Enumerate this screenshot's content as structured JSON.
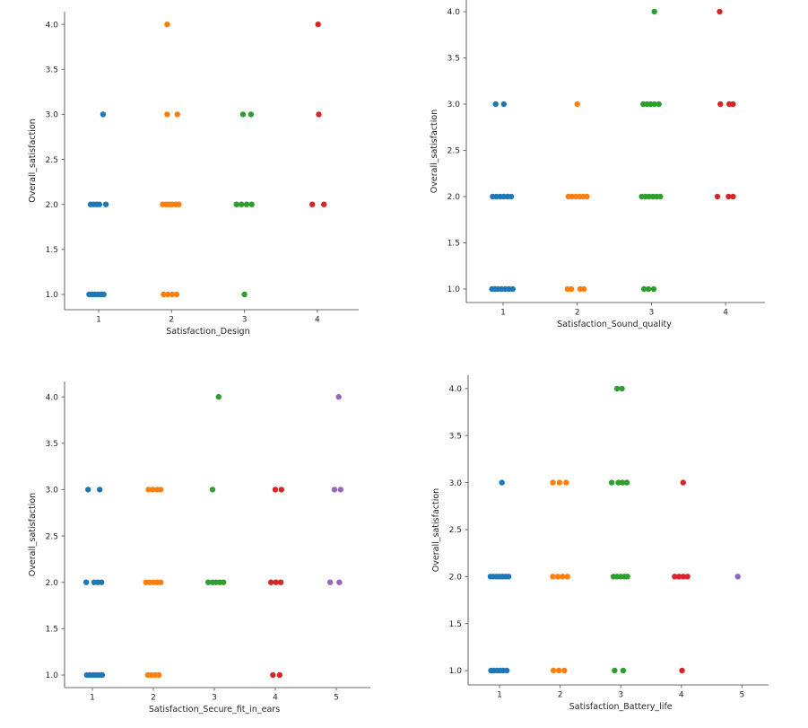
{
  "figure": {
    "background": "#ffffff",
    "axis_color": "#6b6b6b",
    "text_color": "#262626",
    "palette": [
      "#1f77b4",
      "#ff7f0e",
      "#2ca02c",
      "#d62728",
      "#9467bd"
    ]
  },
  "chart_data": [
    {
      "type": "scatter",
      "position": "top-left",
      "title": "",
      "xlabel": "Satisfaction_Design",
      "ylabel": "Overall_satisfaction",
      "x_ticks": [
        "1",
        "2",
        "3",
        "4"
      ],
      "y_ticks": [
        "1.0",
        "1.5",
        "2.0",
        "2.5",
        "3.0",
        "3.5",
        "4.0"
      ],
      "xlim": [
        0.53,
        4.57
      ],
      "ylim": [
        0.83,
        4.14
      ],
      "grid": false,
      "legend": "none",
      "series": [
        {
          "name": "1",
          "color": "#1f77b4",
          "points": [
            [
              1.06,
              3
            ],
            [
              0.89,
              2
            ],
            [
              0.93,
              2
            ],
            [
              0.97,
              2
            ],
            [
              1.01,
              2
            ],
            [
              1.1,
              2
            ],
            [
              0.87,
              1
            ],
            [
              0.91,
              1
            ],
            [
              0.95,
              1
            ],
            [
              0.99,
              1
            ],
            [
              1.03,
              1
            ],
            [
              1.07,
              1
            ]
          ]
        },
        {
          "name": "2",
          "color": "#ff7f0e",
          "points": [
            [
              1.94,
              4
            ],
            [
              1.94,
              3
            ],
            [
              2.08,
              3
            ],
            [
              1.88,
              2
            ],
            [
              1.93,
              2
            ],
            [
              1.97,
              2
            ],
            [
              2.01,
              2
            ],
            [
              2.06,
              2
            ],
            [
              2.1,
              2
            ],
            [
              1.89,
              1
            ],
            [
              1.95,
              1
            ],
            [
              2.01,
              1
            ],
            [
              2.07,
              1
            ]
          ]
        },
        {
          "name": "3",
          "color": "#2ca02c",
          "points": [
            [
              2.98,
              3
            ],
            [
              3.09,
              3
            ],
            [
              2.89,
              2
            ],
            [
              2.96,
              2
            ],
            [
              3.03,
              2
            ],
            [
              3.1,
              2
            ],
            [
              3.0,
              1
            ]
          ]
        },
        {
          "name": "4",
          "color": "#d62728",
          "points": [
            [
              4.01,
              4
            ],
            [
              4.02,
              3
            ],
            [
              3.93,
              2
            ],
            [
              4.09,
              2
            ]
          ]
        }
      ]
    },
    {
      "type": "scatter",
      "position": "top-right",
      "title": "",
      "xlabel": "Satisfaction_Sound_quality",
      "ylabel": "Overall_satisfaction",
      "x_ticks": [
        "1",
        "2",
        "3",
        "4"
      ],
      "y_ticks": [
        "1.0",
        "1.5",
        "2.0",
        "2.5",
        "3.0",
        "3.5",
        "4.0"
      ],
      "xlim": [
        0.5,
        4.53
      ],
      "ylim": [
        0.85,
        4.13
      ],
      "grid": false,
      "legend": "none",
      "series": [
        {
          "name": "1",
          "color": "#1f77b4",
          "points": [
            [
              0.9,
              3
            ],
            [
              1.01,
              3
            ],
            [
              0.86,
              2
            ],
            [
              0.91,
              2
            ],
            [
              0.96,
              2
            ],
            [
              1.01,
              2
            ],
            [
              1.06,
              2
            ],
            [
              1.11,
              2
            ],
            [
              0.85,
              1
            ],
            [
              0.89,
              1
            ],
            [
              0.93,
              1
            ],
            [
              0.98,
              1
            ],
            [
              1.03,
              1
            ],
            [
              1.08,
              1
            ],
            [
              1.13,
              1
            ]
          ]
        },
        {
          "name": "2",
          "color": "#ff7f0e",
          "points": [
            [
              2.0,
              3
            ],
            [
              1.88,
              2
            ],
            [
              1.93,
              2
            ],
            [
              1.98,
              2
            ],
            [
              2.03,
              2
            ],
            [
              2.08,
              2
            ],
            [
              2.13,
              2
            ],
            [
              1.87,
              1
            ],
            [
              1.92,
              1
            ],
            [
              2.04,
              1
            ],
            [
              2.09,
              1
            ]
          ]
        },
        {
          "name": "3",
          "color": "#2ca02c",
          "points": [
            [
              3.04,
              4
            ],
            [
              2.89,
              3
            ],
            [
              2.94,
              3
            ],
            [
              2.99,
              3
            ],
            [
              3.04,
              3
            ],
            [
              3.1,
              3
            ],
            [
              2.87,
              2
            ],
            [
              2.92,
              2
            ],
            [
              2.97,
              2
            ],
            [
              3.02,
              2
            ],
            [
              3.07,
              2
            ],
            [
              3.12,
              2
            ],
            [
              2.9,
              1
            ],
            [
              2.96,
              1
            ],
            [
              3.03,
              1
            ]
          ]
        },
        {
          "name": "4",
          "color": "#d62728",
          "points": [
            [
              3.92,
              4
            ],
            [
              3.93,
              3
            ],
            [
              4.05,
              3
            ],
            [
              4.1,
              3
            ],
            [
              3.89,
              2
            ],
            [
              4.04,
              2
            ],
            [
              4.1,
              2
            ]
          ]
        }
      ]
    },
    {
      "type": "scatter",
      "position": "bottom-left",
      "title": "",
      "xlabel": "Satisfaction_Secure_fit_in_ears",
      "ylabel": "Overall_satisfaction",
      "x_ticks": [
        "1",
        "2",
        "3",
        "4",
        "5"
      ],
      "y_ticks": [
        "1.0",
        "1.5",
        "2.0",
        "2.5",
        "3.0",
        "3.5",
        "4.0"
      ],
      "xlim": [
        0.54,
        5.56
      ],
      "ylim": [
        0.86,
        4.16
      ],
      "grid": false,
      "legend": "none",
      "series": [
        {
          "name": "1",
          "color": "#1f77b4",
          "points": [
            [
              0.93,
              3
            ],
            [
              1.12,
              3
            ],
            [
              0.9,
              2
            ],
            [
              1.03,
              2
            ],
            [
              1.09,
              2
            ],
            [
              1.15,
              2
            ],
            [
              0.91,
              1
            ],
            [
              0.96,
              1
            ],
            [
              1.01,
              1
            ],
            [
              1.06,
              1
            ],
            [
              1.11,
              1
            ],
            [
              1.16,
              1
            ]
          ]
        },
        {
          "name": "2",
          "color": "#ff7f0e",
          "points": [
            [
              1.92,
              3
            ],
            [
              1.99,
              3
            ],
            [
              2.06,
              3
            ],
            [
              2.12,
              3
            ],
            [
              1.88,
              2
            ],
            [
              1.94,
              2
            ],
            [
              2.0,
              2
            ],
            [
              2.06,
              2
            ],
            [
              2.12,
              2
            ],
            [
              1.91,
              1
            ],
            [
              1.97,
              1
            ],
            [
              2.03,
              1
            ],
            [
              2.09,
              1
            ]
          ]
        },
        {
          "name": "3",
          "color": "#2ca02c",
          "points": [
            [
              3.07,
              4
            ],
            [
              2.97,
              3
            ],
            [
              2.9,
              2
            ],
            [
              2.97,
              2
            ],
            [
              3.03,
              2
            ],
            [
              3.09,
              2
            ],
            [
              3.15,
              2
            ]
          ]
        },
        {
          "name": "4",
          "color": "#d62728",
          "points": [
            [
              4.0,
              3
            ],
            [
              4.1,
              3
            ],
            [
              3.93,
              2
            ],
            [
              4.01,
              2
            ],
            [
              4.09,
              2
            ],
            [
              3.96,
              1
            ],
            [
              4.07,
              1
            ]
          ]
        },
        {
          "name": "5",
          "color": "#9467bd",
          "points": [
            [
              5.04,
              4
            ],
            [
              4.97,
              3
            ],
            [
              5.07,
              3
            ],
            [
              4.9,
              2
            ],
            [
              5.05,
              2
            ]
          ]
        }
      ]
    },
    {
      "type": "scatter",
      "position": "bottom-right",
      "title": "",
      "xlabel": "Satisfaction_Battery_life",
      "ylabel": "Overall_satisfaction",
      "x_ticks": [
        "1",
        "2",
        "3",
        "4",
        "5"
      ],
      "y_ticks": [
        "1.0",
        "1.5",
        "2.0",
        "2.5",
        "3.0",
        "3.5",
        "4.0"
      ],
      "xlim": [
        0.48,
        5.44
      ],
      "ylim": [
        0.85,
        4.14
      ],
      "grid": false,
      "legend": "none",
      "series": [
        {
          "name": "1",
          "color": "#1f77b4",
          "points": [
            [
              1.04,
              3
            ],
            [
              0.85,
              2
            ],
            [
              0.9,
              2
            ],
            [
              0.95,
              2
            ],
            [
              1.0,
              2
            ],
            [
              1.05,
              2
            ],
            [
              1.1,
              2
            ],
            [
              1.15,
              2
            ],
            [
              0.86,
              1
            ],
            [
              0.91,
              1
            ],
            [
              0.96,
              1
            ],
            [
              1.01,
              1
            ],
            [
              1.06,
              1
            ],
            [
              1.12,
              1
            ]
          ]
        },
        {
          "name": "2",
          "color": "#ff7f0e",
          "points": [
            [
              1.88,
              3
            ],
            [
              1.99,
              3
            ],
            [
              2.1,
              3
            ],
            [
              1.88,
              2
            ],
            [
              1.96,
              2
            ],
            [
              2.04,
              2
            ],
            [
              2.12,
              2
            ],
            [
              1.89,
              1
            ],
            [
              1.98,
              1
            ],
            [
              2.07,
              1
            ]
          ]
        },
        {
          "name": "3",
          "color": "#2ca02c",
          "points": [
            [
              2.94,
              4
            ],
            [
              3.02,
              4
            ],
            [
              2.85,
              3
            ],
            [
              2.96,
              3
            ],
            [
              3.03,
              3
            ],
            [
              3.1,
              3
            ],
            [
              2.88,
              2
            ],
            [
              2.94,
              2
            ],
            [
              3.0,
              2
            ],
            [
              3.06,
              2
            ],
            [
              3.11,
              2
            ],
            [
              2.9,
              1
            ],
            [
              3.04,
              1
            ]
          ]
        },
        {
          "name": "4",
          "color": "#d62728",
          "points": [
            [
              4.03,
              3
            ],
            [
              3.89,
              2
            ],
            [
              3.96,
              2
            ],
            [
              4.03,
              2
            ],
            [
              4.1,
              2
            ],
            [
              4.01,
              1
            ]
          ]
        },
        {
          "name": "5",
          "color": "#9467bd",
          "points": [
            [
              4.93,
              2
            ]
          ]
        }
      ]
    }
  ]
}
